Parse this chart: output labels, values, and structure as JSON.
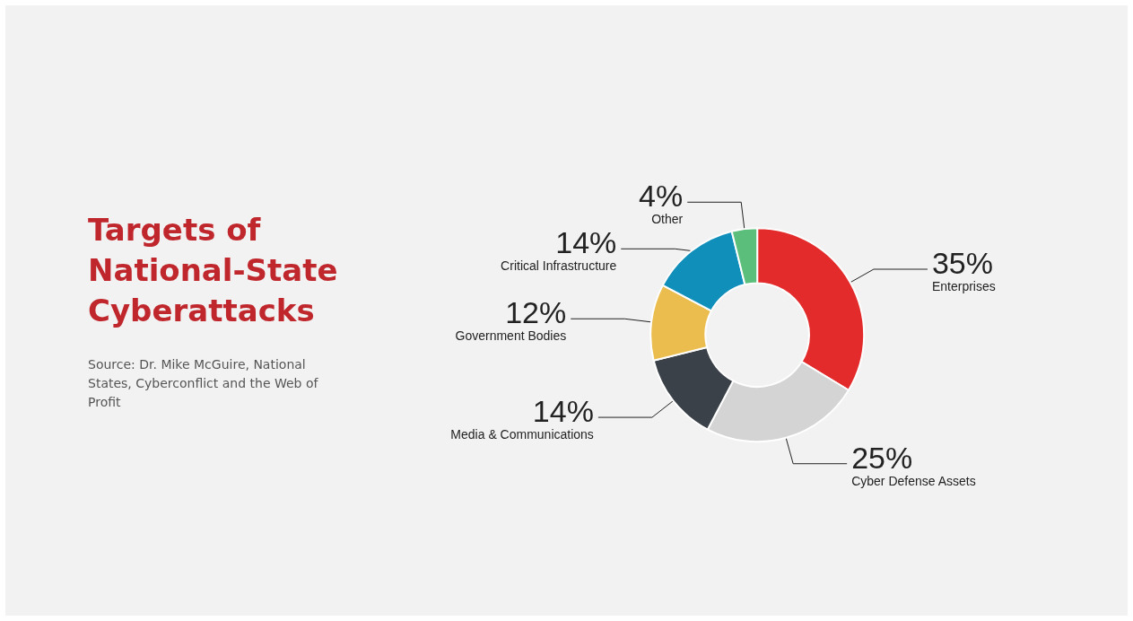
{
  "chart_data": {
    "type": "donut",
    "title": "Targets of National-State Cyberattacks",
    "annotations": [
      "Source: Dr. Mike McGuire, National States, Cyberconflict and the Web of Profit"
    ],
    "categories": [
      "Enterprises",
      "Cyber Defense Assets",
      "Media & Communications",
      "Government Bodies",
      "Critical Infrastructure",
      "Other"
    ],
    "values": [
      35,
      25,
      14,
      12,
      14,
      4
    ],
    "value_labels": [
      "35%",
      "25%",
      "14%",
      "12%",
      "14%",
      "4%"
    ],
    "colors": [
      "#e32b2b",
      "#d4d4d4",
      "#3b4148",
      "#ebbd4e",
      "#118fbb",
      "#5bbf7b"
    ],
    "legend": false
  }
}
